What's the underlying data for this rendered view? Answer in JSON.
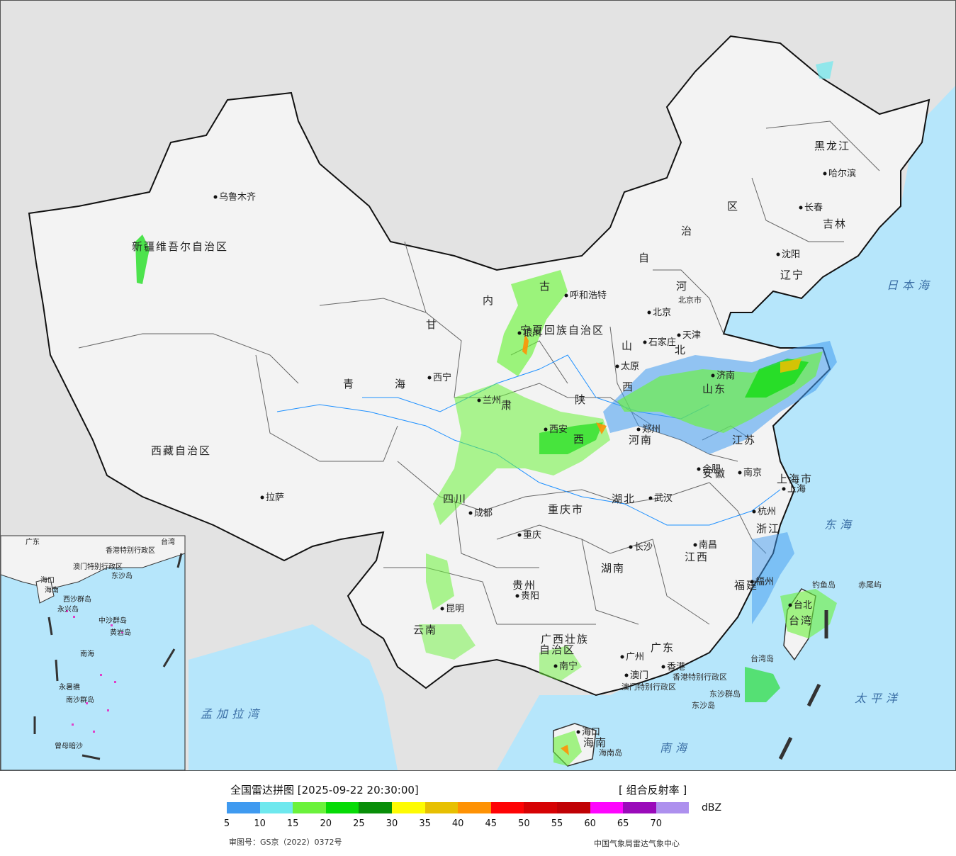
{
  "map": {
    "provinces": [
      {
        "name": "新疆维吾尔自治区"
      },
      {
        "name": "西藏自治区"
      },
      {
        "name": "内"
      },
      {
        "name": "古"
      },
      {
        "name": "自"
      },
      {
        "name": "治"
      },
      {
        "name": "区"
      },
      {
        "name": "黑龙江"
      },
      {
        "name": "吉林"
      },
      {
        "name": "辽宁"
      },
      {
        "name": "青"
      },
      {
        "name": "海"
      },
      {
        "name": "甘"
      },
      {
        "name": "肃"
      },
      {
        "name": "宁夏回族自治区"
      },
      {
        "name": "陕"
      },
      {
        "name": "西"
      },
      {
        "name": "山"
      },
      {
        "name": "西"
      },
      {
        "name": "河"
      },
      {
        "name": "北"
      },
      {
        "name": "山东"
      },
      {
        "name": "河南"
      },
      {
        "name": "江苏"
      },
      {
        "name": "安徽"
      },
      {
        "name": "上海市"
      },
      {
        "name": "浙江"
      },
      {
        "name": "湖北"
      },
      {
        "name": "四川"
      },
      {
        "name": "重庆市"
      },
      {
        "name": "湖南"
      },
      {
        "name": "江西"
      },
      {
        "name": "福建"
      },
      {
        "name": "贵州"
      },
      {
        "name": "云南"
      },
      {
        "name": "广西壮族"
      },
      {
        "name": "自治区"
      },
      {
        "name": "广东"
      },
      {
        "name": "海南"
      },
      {
        "name": "台湾"
      }
    ],
    "cities": [
      {
        "name": "乌鲁木齐"
      },
      {
        "name": "拉萨"
      },
      {
        "name": "西宁"
      },
      {
        "name": "兰州"
      },
      {
        "name": "银川"
      },
      {
        "name": "呼和浩特"
      },
      {
        "name": "北京"
      },
      {
        "name": "天津"
      },
      {
        "name": "石家庄"
      },
      {
        "name": "太原"
      },
      {
        "name": "济南"
      },
      {
        "name": "郑州"
      },
      {
        "name": "西安"
      },
      {
        "name": "成都"
      },
      {
        "name": "重庆"
      },
      {
        "name": "武汉"
      },
      {
        "name": "合肥"
      },
      {
        "name": "南京"
      },
      {
        "name": "上海"
      },
      {
        "name": "杭州"
      },
      {
        "name": "长沙"
      },
      {
        "name": "南昌"
      },
      {
        "name": "福州"
      },
      {
        "name": "贵阳"
      },
      {
        "name": "昆明"
      },
      {
        "name": "南宁"
      },
      {
        "name": "广州"
      },
      {
        "name": "澳门"
      },
      {
        "name": "香港"
      },
      {
        "name": "海口"
      },
      {
        "name": "哈尔滨"
      },
      {
        "name": "长春"
      },
      {
        "name": "沈阳"
      },
      {
        "name": "台北"
      }
    ],
    "labels": {
      "beijing_city": "北京市",
      "tianjin_city": "天津",
      "hk_sar": "香港特别行政区",
      "macau_sar": "澳门特别行政区",
      "hainan_island": "海南岛",
      "taiwan_island": "台湾岛",
      "dongsha": "东沙群岛",
      "dongsha_island": "东沙岛",
      "diaoyu": "钓鱼岛",
      "chiwei": "赤尾屿"
    },
    "seas": {
      "japan": "日本海",
      "east_sea": "东海",
      "pacific": "太平洋",
      "south_sea": "南海",
      "bay_of_bengal": "孟加拉湾"
    },
    "inset": {
      "labels": [
        "广东",
        "香港特别行政区",
        "澳门特别行政区",
        "台湾",
        "海口",
        "海南",
        "东沙岛",
        "西沙群岛",
        "永兴岛",
        "中沙群岛",
        "黄岩岛",
        "南海",
        "南沙群岛",
        "永暑礁",
        "曾母暗沙"
      ]
    }
  },
  "legend": {
    "title": "全国雷达拼图 [2025-09-22 20:30:00]",
    "product": "[ 组合反射率 ]",
    "unit": "dBZ",
    "ticks": [
      "5",
      "10",
      "15",
      "20",
      "25",
      "30",
      "35",
      "40",
      "45",
      "50",
      "55",
      "60",
      "65",
      "70"
    ],
    "colors": [
      "#3f9af0",
      "#6ee8ee",
      "#6bf23b",
      "#06db06",
      "#088e08",
      "#fefb03",
      "#e7c002",
      "#fe9204",
      "#fe0305",
      "#d60204",
      "#c00105",
      "#fe05fe",
      "#9a0aba",
      "#ad90ee"
    ]
  },
  "footer": {
    "approval": "审图号：GS京（2022）0372号",
    "producer": "中国气象局雷达气象中心"
  }
}
